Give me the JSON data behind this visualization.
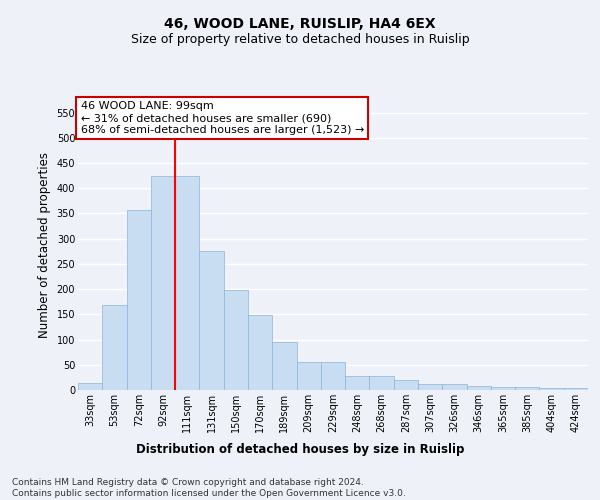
{
  "title": "46, WOOD LANE, RUISLIP, HA4 6EX",
  "subtitle": "Size of property relative to detached houses in Ruislip",
  "xlabel": "Distribution of detached houses by size in Ruislip",
  "ylabel": "Number of detached properties",
  "categories": [
    "33sqm",
    "53sqm",
    "72sqm",
    "92sqm",
    "111sqm",
    "131sqm",
    "150sqm",
    "170sqm",
    "189sqm",
    "209sqm",
    "229sqm",
    "248sqm",
    "268sqm",
    "287sqm",
    "307sqm",
    "326sqm",
    "346sqm",
    "365sqm",
    "385sqm",
    "404sqm",
    "424sqm"
  ],
  "values": [
    13,
    168,
    357,
    425,
    425,
    275,
    198,
    148,
    95,
    55,
    55,
    27,
    27,
    20,
    11,
    12,
    7,
    5,
    5,
    4,
    4
  ],
  "bar_color": "#c9ddf2",
  "bar_edge_color": "#8ab4d9",
  "red_line_index": 3.5,
  "annotation_text": "46 WOOD LANE: 99sqm\n← 31% of detached houses are smaller (690)\n68% of semi-detached houses are larger (1,523) →",
  "annotation_box_color": "#ffffff",
  "annotation_box_edge": "#cc0000",
  "ylim": [
    0,
    575
  ],
  "yticks": [
    0,
    50,
    100,
    150,
    200,
    250,
    300,
    350,
    400,
    450,
    500,
    550
  ],
  "footer": "Contains HM Land Registry data © Crown copyright and database right 2024.\nContains public sector information licensed under the Open Government Licence v3.0.",
  "bg_color": "#eef2f8",
  "plot_bg_color": "#eef2f8",
  "grid_color": "#ffffff",
  "title_fontsize": 10,
  "subtitle_fontsize": 9,
  "axis_label_fontsize": 8.5,
  "tick_fontsize": 7,
  "footer_fontsize": 6.5,
  "annotation_fontsize": 8
}
